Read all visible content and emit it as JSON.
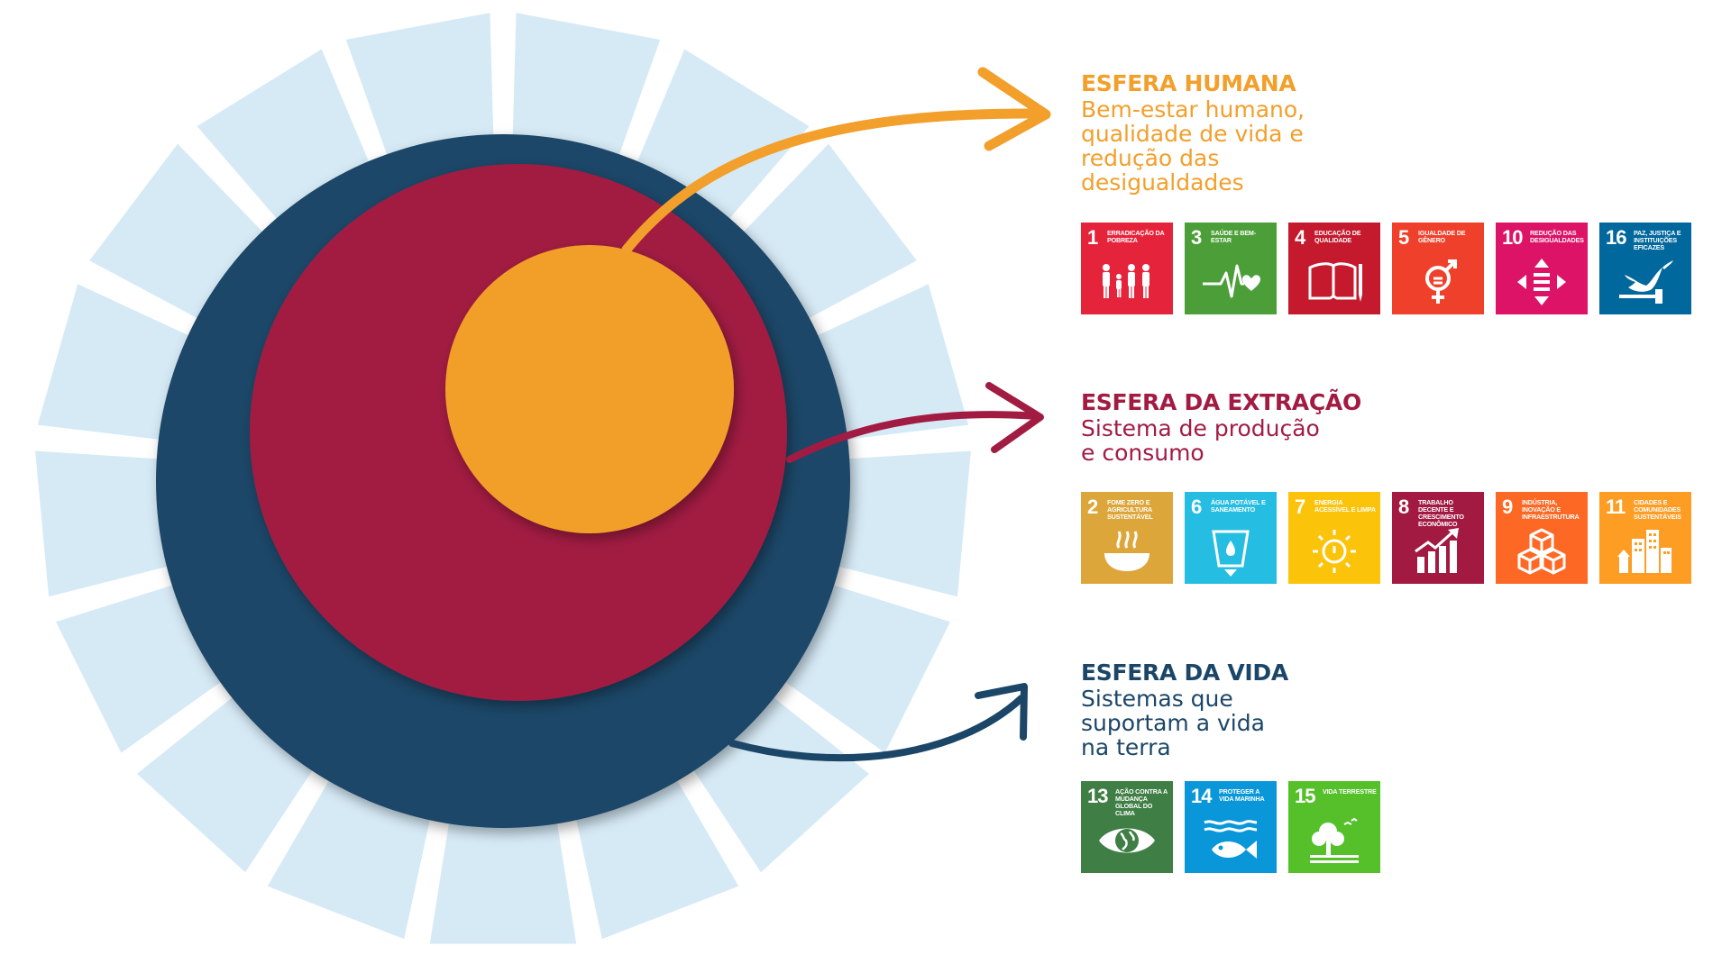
{
  "colors": {
    "ring": "#d6eaf6",
    "life": "#1b4668",
    "extraction": "#a21b43",
    "human": "#f29f2b"
  },
  "spheres": [
    {
      "key": "human",
      "title": "ESFERA HUMANA",
      "description": [
        "Bem-estar humano,",
        "qualidade de vida e",
        "redução das",
        "desigualdades"
      ],
      "color": "#f29f2b",
      "goals": [
        {
          "number": "1",
          "label": "Erradicação da pobreza",
          "color": "#e5243b",
          "icon": "family-icon"
        },
        {
          "number": "3",
          "label": "Saúde e bem-estar",
          "color": "#4c9f38",
          "icon": "heartbeat-icon"
        },
        {
          "number": "4",
          "label": "Educação de qualidade",
          "color": "#c5192d",
          "icon": "book-icon"
        },
        {
          "number": "5",
          "label": "Igualdade de gênero",
          "color": "#ef402b",
          "icon": "gender-icon"
        },
        {
          "number": "10",
          "label": "Redução das desigualdades",
          "color": "#dd1367",
          "icon": "equality-icon"
        },
        {
          "number": "16",
          "label": "Paz, justiça e instituições eficazes",
          "color": "#00689d",
          "icon": "dove-icon"
        }
      ]
    },
    {
      "key": "extraction",
      "title": "ESFERA DA EXTRAÇÃO",
      "description": [
        "Sistema de produção",
        "e consumo"
      ],
      "color": "#a21b43",
      "goals": [
        {
          "number": "2",
          "label": "Fome zero e agricultura sustentável",
          "color": "#dda63a",
          "icon": "bowl-icon"
        },
        {
          "number": "6",
          "label": "Água potável e saneamento",
          "color": "#26bde2",
          "icon": "water-glass-icon"
        },
        {
          "number": "7",
          "label": "Energia acessível e limpa",
          "color": "#fcc30b",
          "icon": "sun-power-icon"
        },
        {
          "number": "8",
          "label": "Trabalho decente e crescimento econômico",
          "color": "#a21942",
          "icon": "growth-chart-icon"
        },
        {
          "number": "9",
          "label": "Indústria, inovação e infraestrutura",
          "color": "#fd6925",
          "icon": "cubes-icon"
        },
        {
          "number": "11",
          "label": "Cidades e comunidades sustentáveis",
          "color": "#fd9d24",
          "icon": "city-icon"
        }
      ]
    },
    {
      "key": "life",
      "title": "ESFERA DA VIDA",
      "description": [
        "Sistemas que",
        "suportam a vida",
        "na terra"
      ],
      "color": "#1b4668",
      "goals": [
        {
          "number": "13",
          "label": "Ação contra a mudança global do clima",
          "color": "#3f7e44",
          "icon": "eye-globe-icon"
        },
        {
          "number": "14",
          "label": "Proteger a vida marinha",
          "color": "#0a97d9",
          "icon": "fish-icon"
        },
        {
          "number": "15",
          "label": "Vida terrestre",
          "color": "#56c02b",
          "icon": "tree-icon"
        }
      ]
    }
  ]
}
